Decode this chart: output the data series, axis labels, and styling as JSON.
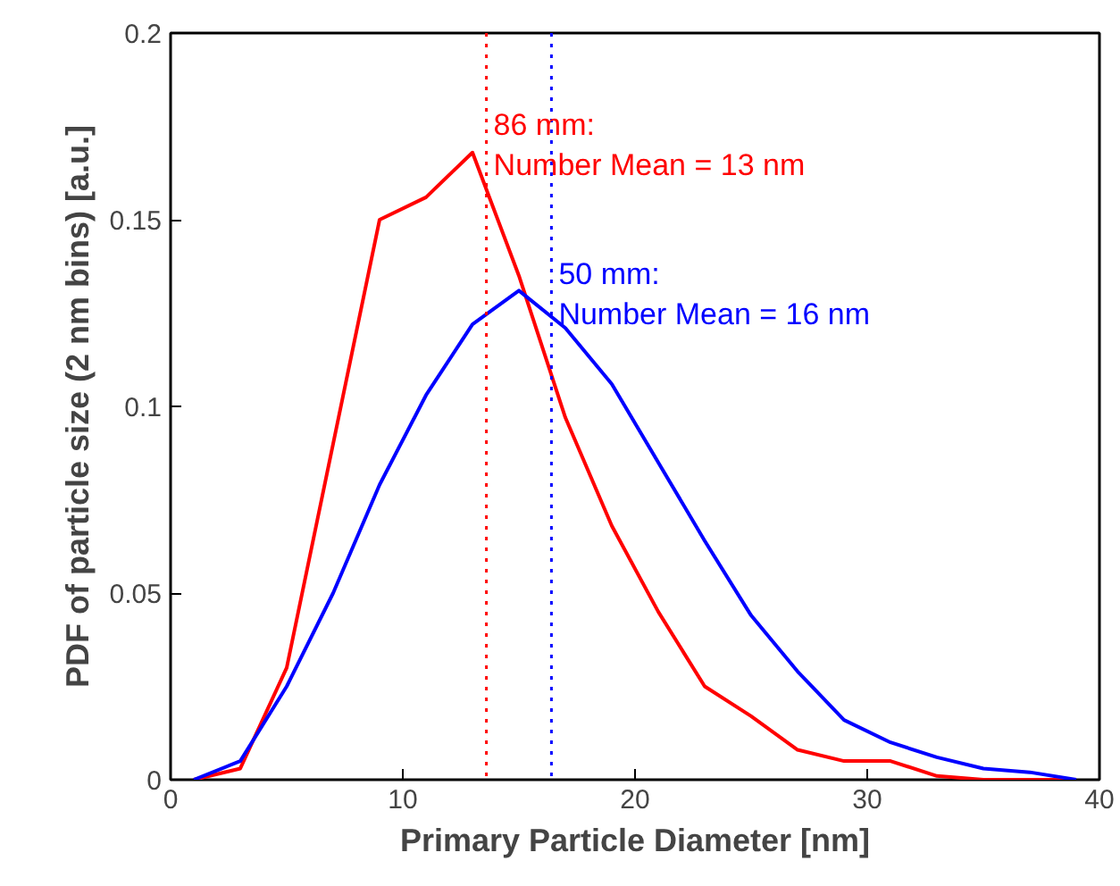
{
  "chart_data": {
    "type": "line",
    "xlabel": "Primary Particle Diameter [nm]",
    "ylabel": "PDF of particle size (2 nm bins) [a.u.]",
    "x": [
      1,
      3,
      5,
      7,
      9,
      11,
      13,
      15,
      17,
      19,
      21,
      23,
      25,
      27,
      29,
      31,
      33,
      35,
      37,
      39
    ],
    "series": [
      {
        "color": "#ff0000",
        "values": [
          0,
          0.003,
          0.03,
          0.09,
          0.15,
          0.156,
          0.168,
          0.135,
          0.097,
          0.068,
          0.045,
          0.025,
          0.017,
          0.008,
          0.005,
          0.005,
          0.001,
          0,
          0,
          0
        ]
      },
      {
        "color": "#0000ff",
        "values": [
          0,
          0.005,
          0.025,
          0.05,
          0.079,
          0.103,
          0.122,
          0.131,
          0.121,
          0.106,
          0.085,
          0.064,
          0.044,
          0.029,
          0.016,
          0.01,
          0.006,
          0.003,
          0.002,
          0
        ]
      }
    ],
    "ref_lines": [
      {
        "axis": "x",
        "value": 13.6,
        "color": "#ff0000",
        "line_style": "dotted"
      },
      {
        "axis": "x",
        "value": 16.4,
        "color": "#0000ff",
        "line_style": "dotted"
      }
    ],
    "annotations": [
      {
        "text": "86 mm:\nNumber Mean = 13 nm",
        "x": 13.6,
        "y": 0.18
      },
      {
        "text": "50 mm:\nNumber Mean = 16 nm",
        "x": 16.4,
        "y": 0.14
      }
    ],
    "xlim": [
      0,
      40
    ],
    "ylim": [
      0,
      0.2
    ],
    "xticks": [
      0,
      10,
      20,
      30,
      40
    ],
    "yticks": [
      0,
      0.05,
      0.1,
      0.15,
      0.2
    ],
    "marker": "none",
    "line_style": "solid"
  }
}
